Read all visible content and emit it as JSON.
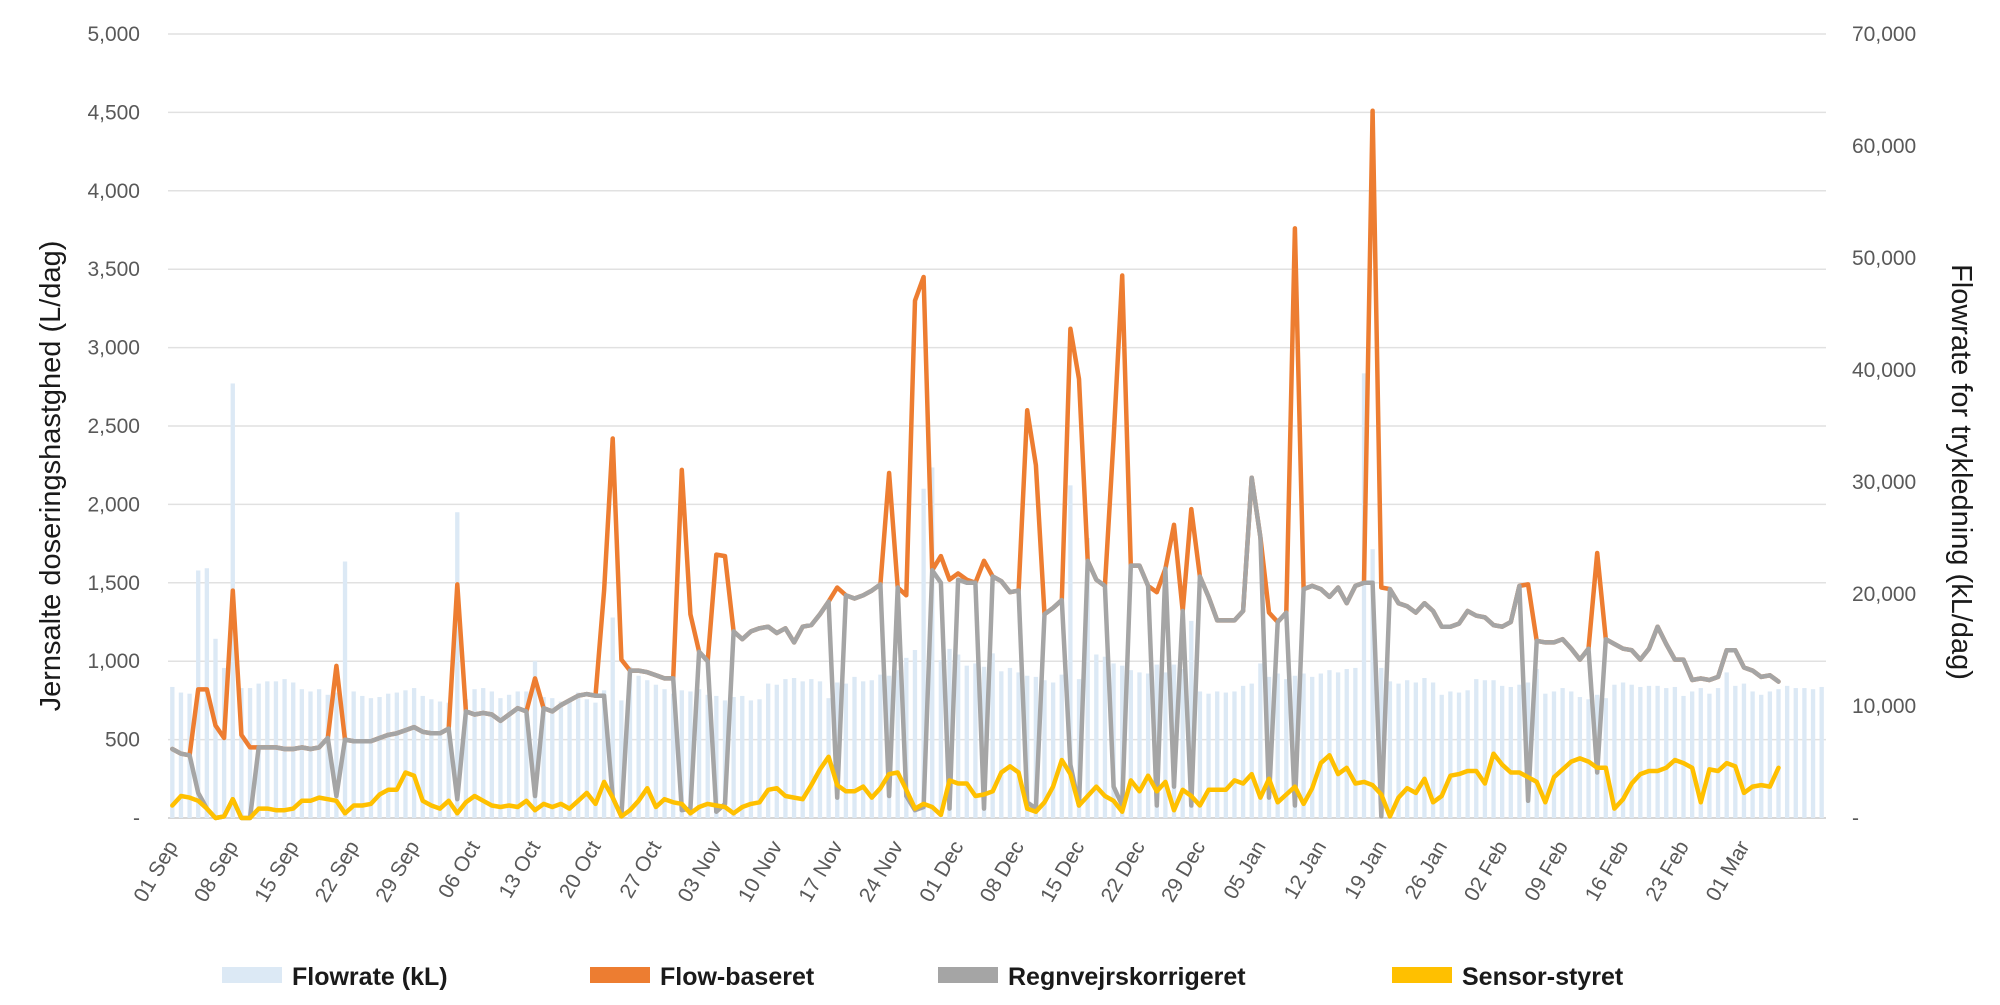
{
  "chart_data": {
    "type": "line",
    "bar_series": {
      "name": "Flowrate (kL)",
      "color": "#dce9f5",
      "axis": "right",
      "values": [
        11700,
        11200,
        11100,
        22100,
        22300,
        16000,
        13400,
        38800,
        11600,
        11600,
        12000,
        12200,
        12200,
        12400,
        12100,
        11500,
        11300,
        11500,
        11000,
        11200,
        22900,
        11300,
        10900,
        10700,
        10800,
        11100,
        11200,
        11400,
        11600,
        10900,
        10600,
        10400,
        10300,
        27300,
        10600,
        11500,
        11600,
        11300,
        10700,
        11000,
        11300,
        11300,
        14000,
        10800,
        10700,
        10400,
        10500,
        11200,
        10600,
        10300,
        11400,
        17900,
        10500,
        13500,
        12700,
        12300,
        11900,
        11500,
        11100,
        11400,
        11300,
        11500,
        11000,
        10900,
        10500,
        10800,
        10900,
        10500,
        10600,
        12000,
        11900,
        12400,
        12500,
        12200,
        12400,
        12200,
        10700,
        12100,
        12000,
        12600,
        12200,
        12300,
        12800,
        12700,
        13200,
        14300,
        15000,
        29400,
        31300,
        14100,
        15100,
        14600,
        13600,
        13800,
        13500,
        14700,
        13100,
        13400,
        13000,
        12700,
        12600,
        12300,
        12100,
        12800,
        29700,
        12400,
        25000,
        14600,
        14400,
        13800,
        13600,
        13200,
        13000,
        12900,
        13700,
        13000,
        13700,
        13300,
        17600,
        11300,
        11100,
        11300,
        11200,
        11300,
        11800,
        12000,
        13800,
        12600,
        12900,
        12400,
        12700,
        12900,
        12600,
        12900,
        13200,
        13000,
        13300,
        13400,
        39700,
        24000,
        13400,
        12200,
        12000,
        12300,
        12100,
        12500,
        12100,
        11000,
        11300,
        11200,
        11400,
        12400,
        12300,
        12300,
        11800,
        11700,
        11900,
        12100,
        13300,
        11100,
        11300,
        11600,
        11300,
        10800,
        10600,
        11000,
        10700,
        11900,
        12100,
        11900,
        11700,
        11800,
        11800,
        11600,
        11700,
        10900,
        11300,
        11600,
        11100,
        11600,
        13000,
        11800,
        12000,
        11300,
        11000,
        11300,
        11500,
        11800,
        11600,
        11600,
        11500,
        11700
      ]
    },
    "series": [
      {
        "name": "Flow-baseret",
        "color": "#ed7d31",
        "axis": "left",
        "values": [
          440,
          410,
          400,
          820,
          820,
          590,
          510,
          1450,
          530,
          450,
          450,
          450,
          450,
          440,
          440,
          450,
          440,
          450,
          510,
          970,
          500,
          490,
          490,
          490,
          510,
          530,
          540,
          560,
          580,
          550,
          540,
          540,
          570,
          1490,
          680,
          660,
          670,
          660,
          620,
          660,
          700,
          680,
          890,
          700,
          680,
          720,
          750,
          780,
          790,
          780,
          1450,
          2420,
          1010,
          940,
          940,
          930,
          910,
          890,
          890,
          2220,
          1300,
          1060,
          1000,
          1680,
          1670,
          1190,
          1140,
          1190,
          1210,
          1220,
          1180,
          1210,
          1120,
          1220,
          1230,
          1300,
          1380,
          1470,
          1420,
          1400,
          1420,
          1450,
          1490,
          2200,
          1470,
          1420,
          3300,
          3450,
          1580,
          1670,
          1520,
          1560,
          1520,
          1500,
          1640,
          1540,
          1510,
          1440,
          1450,
          2600,
          2250,
          1300,
          1340,
          1390,
          3120,
          2800,
          1640,
          1520,
          1480,
          2420,
          3460,
          1610,
          1610,
          1480,
          1440,
          1590,
          1870,
          1320,
          1970,
          1540,
          1410,
          1260,
          1260,
          1260,
          1320,
          2170,
          1790,
          1310,
          1250,
          1310,
          3760,
          1460,
          1480,
          1460,
          1410,
          1470,
          1370,
          1480,
          1500,
          4510,
          1470,
          1460,
          1370,
          1350,
          1310,
          1370,
          1320,
          1220,
          1220,
          1240,
          1320,
          1290,
          1280,
          1230,
          1220,
          1250,
          1480,
          1490,
          1130,
          1120,
          1120,
          1140,
          1080,
          1010,
          1080,
          1690,
          1140,
          1110,
          1080,
          1070,
          1010,
          1080,
          1220,
          1110,
          1010,
          1010,
          880,
          890,
          880,
          900,
          1070,
          1070,
          960,
          940,
          900,
          910,
          870
        ]
      },
      {
        "name": "Regnvejrskorrigeret",
        "color": "#a5a5a5",
        "axis": "left",
        "values": [
          440,
          410,
          400,
          160,
          60,
          0,
          10,
          120,
          0,
          0,
          450,
          450,
          450,
          440,
          440,
          450,
          440,
          450,
          510,
          140,
          500,
          490,
          490,
          490,
          510,
          530,
          540,
          560,
          580,
          550,
          540,
          540,
          570,
          120,
          680,
          660,
          670,
          660,
          620,
          660,
          700,
          680,
          140,
          700,
          680,
          720,
          750,
          780,
          790,
          780,
          780,
          130,
          10,
          940,
          940,
          930,
          910,
          890,
          890,
          50,
          60,
          1060,
          1000,
          40,
          90,
          1190,
          1140,
          1190,
          1210,
          1220,
          1180,
          1210,
          1120,
          1220,
          1230,
          1300,
          1380,
          130,
          1420,
          1400,
          1420,
          1450,
          1490,
          140,
          1470,
          140,
          50,
          70,
          1580,
          1500,
          60,
          1520,
          1500,
          1500,
          60,
          1540,
          1510,
          1440,
          1450,
          100,
          60,
          1300,
          1340,
          1390,
          340,
          80,
          1640,
          1520,
          1480,
          200,
          80,
          1610,
          1610,
          1480,
          80,
          1590,
          200,
          1320,
          80,
          1540,
          1410,
          1260,
          1260,
          1260,
          1320,
          2170,
          1790,
          130,
          1250,
          1310,
          80,
          1460,
          1480,
          1460,
          1410,
          1470,
          1370,
          1480,
          1500,
          1500,
          10,
          1460,
          1370,
          1350,
          1310,
          1370,
          1320,
          1220,
          1220,
          1240,
          1320,
          1290,
          1280,
          1230,
          1220,
          1250,
          1480,
          110,
          1130,
          1120,
          1120,
          1140,
          1080,
          1010,
          1080,
          290,
          1140,
          1110,
          1080,
          1070,
          1010,
          1080,
          1220,
          1110,
          1010,
          1010,
          880,
          890,
          880,
          900,
          1070,
          1070,
          960,
          940,
          900,
          910,
          870
        ]
      },
      {
        "name": "Sensor-styret",
        "color": "#ffc000",
        "axis": "left",
        "values": [
          80,
          140,
          130,
          110,
          60,
          0,
          10,
          120,
          0,
          0,
          60,
          60,
          50,
          50,
          60,
          110,
          110,
          130,
          120,
          110,
          30,
          80,
          80,
          90,
          150,
          180,
          180,
          290,
          270,
          110,
          80,
          60,
          110,
          30,
          100,
          140,
          110,
          80,
          70,
          80,
          70,
          110,
          50,
          90,
          70,
          90,
          60,
          110,
          160,
          90,
          230,
          130,
          10,
          50,
          110,
          190,
          70,
          120,
          100,
          90,
          30,
          70,
          90,
          80,
          70,
          30,
          70,
          90,
          100,
          180,
          190,
          140,
          130,
          120,
          210,
          310,
          390,
          210,
          170,
          170,
          200,
          130,
          190,
          280,
          290,
          180,
          60,
          90,
          70,
          20,
          240,
          220,
          220,
          140,
          150,
          170,
          290,
          330,
          290,
          60,
          40,
          100,
          200,
          370,
          280,
          80,
          140,
          200,
          140,
          110,
          40,
          240,
          170,
          270,
          170,
          230,
          50,
          180,
          140,
          80,
          180,
          180,
          180,
          240,
          220,
          280,
          130,
          250,
          100,
          150,
          200,
          90,
          190,
          350,
          400,
          280,
          320,
          220,
          230,
          210,
          150,
          10,
          130,
          190,
          160,
          250,
          100,
          140,
          270,
          280,
          300,
          300,
          220,
          410,
          340,
          290,
          290,
          260,
          230,
          100,
          260,
          310,
          360,
          380,
          360,
          320,
          320,
          60,
          120,
          220,
          280,
          300,
          300,
          320,
          370,
          350,
          320,
          100,
          310,
          300,
          350,
          330,
          160,
          200,
          210,
          200,
          320
        ]
      }
    ],
    "x_tick_labels": [
      "01 Sep",
      "08 Sep",
      "15 Sep",
      "22 Sep",
      "29 Sep",
      "06 Oct",
      "13 Oct",
      "20 Oct",
      "27 Oct",
      "03 Nov",
      "10 Nov",
      "17 Nov",
      "24 Nov",
      "01 Dec",
      "08 Dec",
      "15 Dec",
      "22 Dec",
      "29 Dec",
      "05 Jan",
      "12 Jan",
      "19 Jan",
      "26 Jan",
      "02 Feb",
      "09 Feb",
      "16 Feb",
      "23 Feb",
      "01 Mar"
    ],
    "x_tick_every_n_days": 7,
    "y_left": {
      "label": "Jernsalte doseringshastghed (L/dag)",
      "ylim": [
        0,
        5000
      ],
      "tick_labels": [
        "-",
        "500",
        "1,000",
        "1,500",
        "2,000",
        "2,500",
        "3,000",
        "3,500",
        "4,000",
        "4,500",
        "5,000"
      ]
    },
    "y_right": {
      "label": "Flowrate for trykledning (kL/dag)",
      "ylim": [
        0,
        70000
      ],
      "tick_labels": [
        "-",
        "10,000",
        "20,000",
        "30,000",
        "40,000",
        "50,000",
        "60,000",
        "70,000"
      ]
    },
    "grid": true,
    "legend_position": "bottom",
    "legend": [
      {
        "label": "Flowrate (kL)",
        "color": "#dce9f5",
        "kind": "bar"
      },
      {
        "label": "Flow-baseret",
        "color": "#ed7d31",
        "kind": "line"
      },
      {
        "label": "Regnvejrskorrigeret",
        "color": "#a5a5a5",
        "kind": "line"
      },
      {
        "label": "Sensor-styret",
        "color": "#ffc000",
        "kind": "line"
      }
    ]
  }
}
